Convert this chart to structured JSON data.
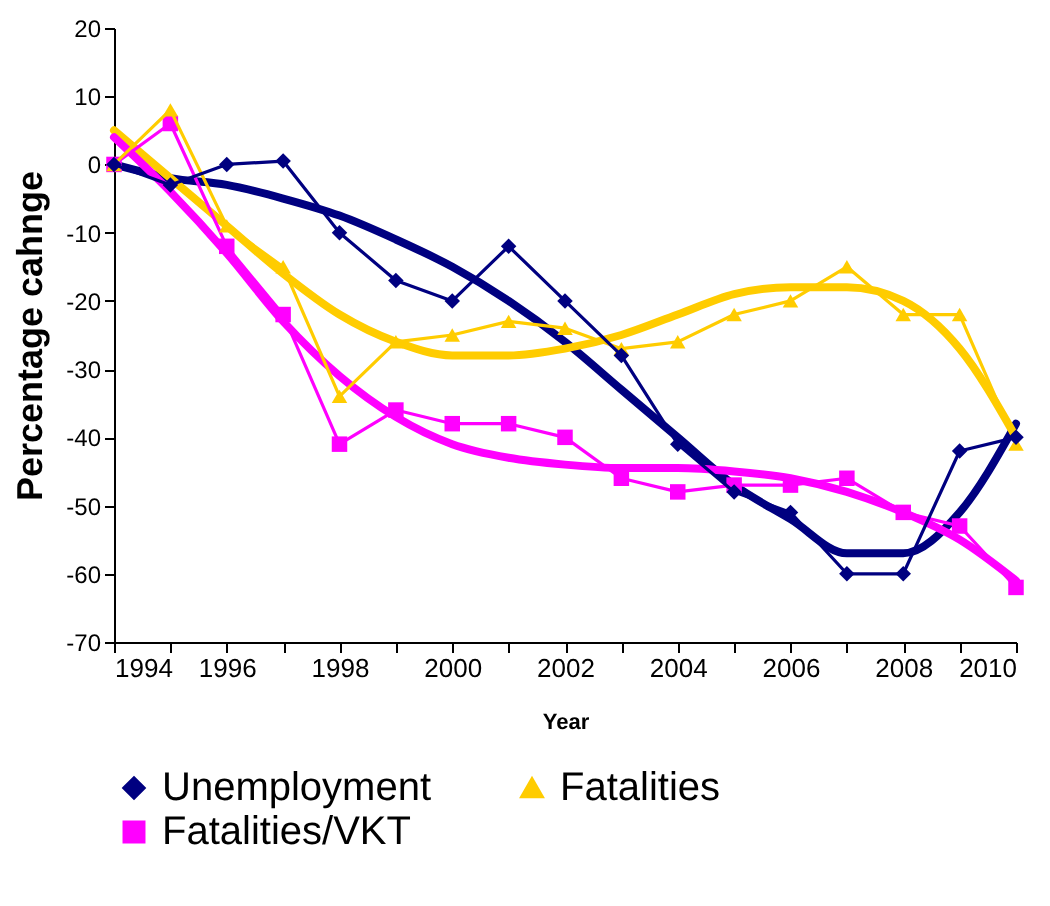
{
  "chart_data": {
    "type": "line",
    "xlabel": "Year",
    "ylabel": "Percentage cahnge",
    "x": [
      1994,
      1995,
      1996,
      1997,
      1998,
      1999,
      2000,
      2001,
      2002,
      2003,
      2004,
      2005,
      2006,
      2007,
      2008,
      2009,
      2010
    ],
    "xlim": [
      1994,
      2010
    ],
    "xticks": [
      1994,
      {
        "value": 1995,
        "label": null
      },
      1996,
      {
        "value": 1997,
        "label": null
      },
      1998,
      {
        "value": 1999,
        "label": null
      },
      2000,
      {
        "value": 2001,
        "label": null
      },
      2002,
      {
        "value": 2003,
        "label": null
      },
      2004,
      {
        "value": 2005,
        "label": null
      },
      2006,
      {
        "value": 2007,
        "label": null
      },
      2008,
      {
        "value": 2009,
        "label": null
      },
      2010
    ],
    "ylim": [
      -70,
      20
    ],
    "yticks": [
      -70,
      -60,
      -50,
      -40,
      -30,
      -20,
      -10,
      0,
      10,
      20
    ],
    "grid": false,
    "legend": "bottom",
    "series": [
      {
        "name": "Unemployment",
        "color": "#000080",
        "marker": "diamond",
        "values": [
          0,
          -3,
          0,
          0.5,
          -10,
          -17,
          -20,
          -12,
          -20,
          -28,
          -41,
          -48,
          -51,
          -60,
          -60,
          -42,
          -40
        ]
      },
      {
        "name": "Fatalities",
        "color": "#ffcc00",
        "marker": "triangle",
        "values": [
          0,
          8,
          -9,
          -15,
          -34,
          -26,
          -25,
          -23,
          -24,
          -27,
          -26,
          -22,
          -20,
          -15,
          -22,
          -22,
          -41
        ]
      },
      {
        "name": "Fatalities/VKT",
        "color": "#ff00ff",
        "marker": "square",
        "values": [
          0,
          6,
          -12,
          -22,
          -41,
          -36,
          -38,
          -38,
          -40,
          -46,
          -48,
          -47,
          -47,
          -46,
          -51,
          -53,
          -62
        ]
      },
      {
        "type": "line",
        "color": "#000080",
        "marker": "none",
        "values": [
          0,
          -2,
          -3,
          -5,
          -7.5,
          -11,
          -15,
          -20,
          -26,
          -33,
          -40,
          -47,
          -52,
          -57,
          -57,
          -51,
          -38
        ]
      },
      {
        "type": "line",
        "color": "#ffcc00",
        "marker": "none",
        "values": [
          5,
          -2,
          -9,
          -16,
          -22,
          -26,
          -28,
          -28,
          -27,
          -25,
          -22,
          -19,
          -18,
          -18,
          -20,
          -27,
          -40
        ]
      },
      {
        "type": "line",
        "color": "#ff00ff",
        "marker": "none",
        "values": [
          4,
          -4,
          -13,
          -23,
          -31,
          -37,
          -41,
          -43,
          -44,
          -44.5,
          -44.5,
          -45,
          -46,
          -48,
          -51,
          -55,
          -61
        ]
      }
    ]
  }
}
